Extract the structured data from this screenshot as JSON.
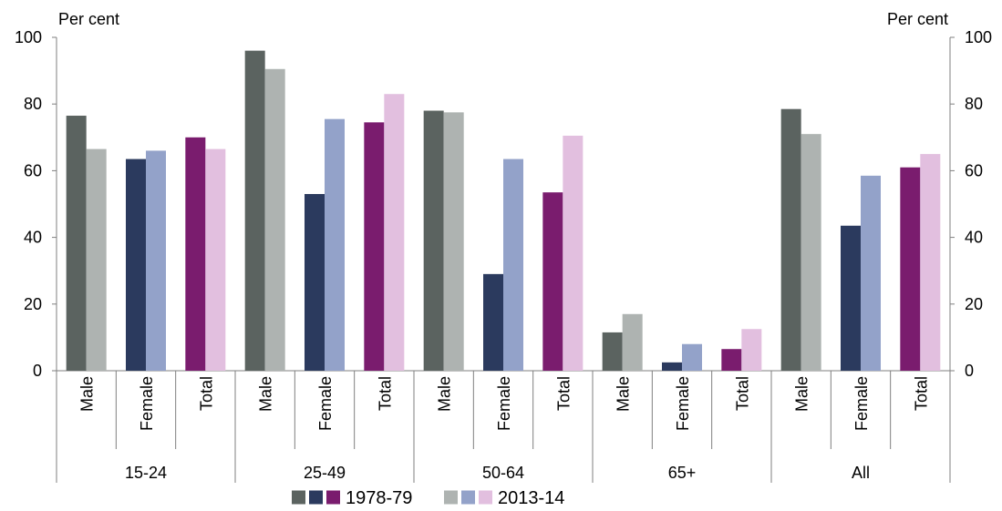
{
  "chart_data": {
    "type": "bar",
    "title": "",
    "ylabel_left": "Per cent",
    "ylabel_right": "Per cent",
    "ylim": [
      0,
      100
    ],
    "yticks": [
      0,
      20,
      40,
      60,
      80,
      100
    ],
    "groups": [
      "15-24",
      "25-49",
      "50-64",
      "65+",
      "All"
    ],
    "subcategories": [
      "Male",
      "Female",
      "Total"
    ],
    "series": [
      {
        "name": "1978-79",
        "values": [
          [
            76.5,
            63.5,
            70.0
          ],
          [
            96.0,
            53.0,
            74.5
          ],
          [
            78.0,
            29.0,
            53.5
          ],
          [
            11.5,
            2.5,
            6.5
          ],
          [
            78.5,
            43.5,
            61.0
          ]
        ]
      },
      {
        "name": "2013-14",
        "values": [
          [
            66.5,
            66.0,
            66.5
          ],
          [
            90.5,
            75.5,
            83.0
          ],
          [
            77.5,
            63.5,
            70.5
          ],
          [
            17.0,
            8.0,
            12.5
          ],
          [
            71.0,
            58.5,
            65.0
          ]
        ]
      }
    ],
    "colors": {
      "1978-79": {
        "Male": "#5b6360",
        "Female": "#2b3a5e",
        "Total": "#7a1c6e"
      },
      "2013-14": {
        "Male": "#aeb3b1",
        "Female": "#93a2c9",
        "Total": "#e2bfdf"
      }
    },
    "legend": {
      "placement": "bottom",
      "entries": [
        {
          "label": "1978-79",
          "swatches": [
            "#5b6360",
            "#2b3a5e",
            "#7a1c6e"
          ]
        },
        {
          "label": "2013-14",
          "swatches": [
            "#aeb3b1",
            "#93a2c9",
            "#e2bfdf"
          ]
        }
      ]
    },
    "grid": false
  }
}
